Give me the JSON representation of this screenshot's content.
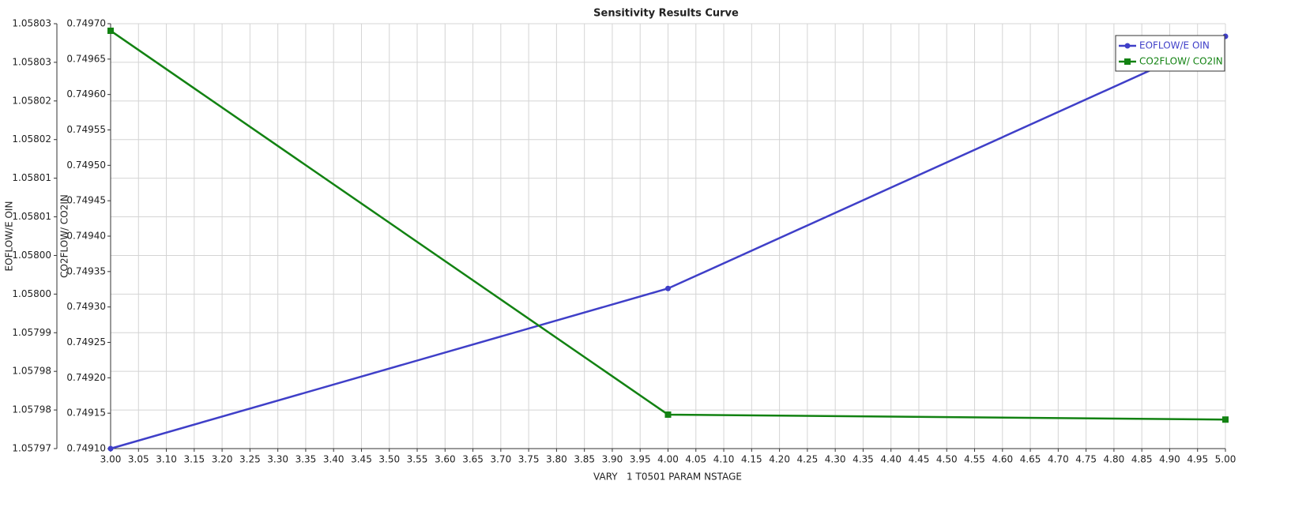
{
  "chart_data": {
    "type": "line",
    "title": "Sensitivity Results Curve",
    "xlabel": "VARY   1 T0501 PARAM NSTAGE",
    "ylabel": "EOFLOW/E OIN",
    "y2label": "CO2FLOW/ CO2IN",
    "grid": true,
    "legend": "upper right",
    "x": [
      3,
      4,
      5
    ],
    "series": [
      {
        "name": "EOFLOW/E OIN",
        "color": "#3f3fc8",
        "marker": "circle",
        "values": [
          1.057973,
          1.0579958,
          1.0580317
        ]
      },
      {
        "name": "CO2FLOW/ CO2IN",
        "color": "#128212",
        "marker": "square",
        "axis": "y2",
        "values": [
          0.74969,
          0.749148,
          0.749141
        ]
      }
    ],
    "xlim": [
      3,
      5
    ],
    "xticks": [
      {
        "value": 3,
        "label": "3.00"
      },
      {
        "value": 3.05,
        "label": "3.05"
      },
      {
        "value": 3.1,
        "label": "3.10"
      },
      {
        "value": 3.15,
        "label": "3.15"
      },
      {
        "value": 3.2,
        "label": "3.20"
      },
      {
        "value": 3.25,
        "label": "3.25"
      },
      {
        "value": 3.3,
        "label": "3.30"
      },
      {
        "value": 3.35,
        "label": "3.35"
      },
      {
        "value": 3.4,
        "label": "3.40"
      },
      {
        "value": 3.45,
        "label": "3.45"
      },
      {
        "value": 3.5,
        "label": "3.50"
      },
      {
        "value": 3.55,
        "label": "3.55"
      },
      {
        "value": 3.6,
        "label": "3.60"
      },
      {
        "value": 3.65,
        "label": "3.65"
      },
      {
        "value": 3.7,
        "label": "3.70"
      },
      {
        "value": 3.75,
        "label": "3.75"
      },
      {
        "value": 3.8,
        "label": "3.80"
      },
      {
        "value": 3.85,
        "label": "3.85"
      },
      {
        "value": 3.9,
        "label": "3.90"
      },
      {
        "value": 3.95,
        "label": "3.95"
      },
      {
        "value": 4,
        "label": "4.00"
      },
      {
        "value": 4.05,
        "label": "4.05"
      },
      {
        "value": 4.1,
        "label": "4.10"
      },
      {
        "value": 4.15,
        "label": "4.15"
      },
      {
        "value": 4.2,
        "label": "4.20"
      },
      {
        "value": 4.25,
        "label": "4.25"
      },
      {
        "value": 4.3,
        "label": "4.30"
      },
      {
        "value": 4.35,
        "label": "4.35"
      },
      {
        "value": 4.4,
        "label": "4.40"
      },
      {
        "value": 4.45,
        "label": "4.45"
      },
      {
        "value": 4.5,
        "label": "4.50"
      },
      {
        "value": 4.55,
        "label": "4.55"
      },
      {
        "value": 4.6,
        "label": "4.60"
      },
      {
        "value": 4.65,
        "label": "4.65"
      },
      {
        "value": 4.7,
        "label": "4.70"
      },
      {
        "value": 4.75,
        "label": "4.75"
      },
      {
        "value": 4.8,
        "label": "4.80"
      },
      {
        "value": 4.85,
        "label": "4.85"
      },
      {
        "value": 4.9,
        "label": "4.90"
      },
      {
        "value": 4.95,
        "label": "4.95"
      },
      {
        "value": 5,
        "label": "5.00"
      }
    ],
    "ylim": [
      1.057973,
      1.0580335
    ],
    "yticks": [
      {
        "value": 1.057973,
        "label": "1.05797"
      },
      {
        "value": 1.0579785,
        "label": "1.05798"
      },
      {
        "value": 1.057984,
        "label": "1.05798"
      },
      {
        "value": 1.0579895,
        "label": "1.05799"
      },
      {
        "value": 1.057995,
        "label": "1.05800"
      },
      {
        "value": 1.0580005,
        "label": "1.05800"
      },
      {
        "value": 1.058006,
        "label": "1.05801"
      },
      {
        "value": 1.0580115,
        "label": "1.05801"
      },
      {
        "value": 1.058017,
        "label": "1.05802"
      },
      {
        "value": 1.0580225,
        "label": "1.05802"
      },
      {
        "value": 1.058028,
        "label": "1.05803"
      },
      {
        "value": 1.0580335,
        "label": "1.05803"
      }
    ],
    "y2lim": [
      0.7491,
      0.7497
    ],
    "y2ticks": [
      {
        "value": 0.7491,
        "label": "0.74910"
      },
      {
        "value": 0.74915,
        "label": "0.74915"
      },
      {
        "value": 0.7492,
        "label": "0.74920"
      },
      {
        "value": 0.74925,
        "label": "0.74925"
      },
      {
        "value": 0.7493,
        "label": "0.74930"
      },
      {
        "value": 0.74935,
        "label": "0.74935"
      },
      {
        "value": 0.7494,
        "label": "0.74940"
      },
      {
        "value": 0.74945,
        "label": "0.74945"
      },
      {
        "value": 0.7495,
        "label": "0.74950"
      },
      {
        "value": 0.74955,
        "label": "0.74955"
      },
      {
        "value": 0.7496,
        "label": "0.74960"
      },
      {
        "value": 0.74965,
        "label": "0.74965"
      },
      {
        "value": 0.7497,
        "label": "0.74970"
      }
    ]
  }
}
